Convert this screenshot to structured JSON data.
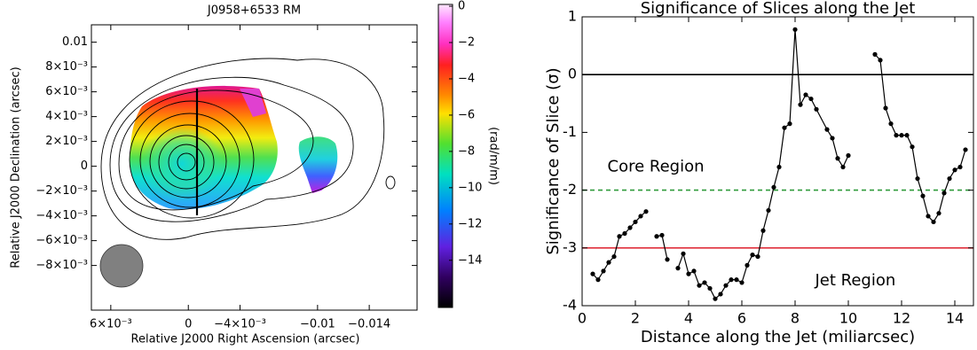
{
  "chart_data": [
    {
      "type": "image",
      "title": "J0958+6533 RM",
      "xlabel": "Relative J2000 Right Ascension (arcsec)",
      "ylabel": "Relative J2000 Declination (arcsec)",
      "xlim": [
        0.0075,
        -0.0177
      ],
      "xticks": [
        {
          "value": 0.006,
          "label": "6×10⁻³"
        },
        0,
        {
          "value": -0.004,
          "label": "−4×10⁻³"
        },
        {
          "value": -0.01,
          "label": "−0.01"
        },
        {
          "value": -0.014,
          "label": "−0.014"
        }
      ],
      "ylim": [
        -0.0116,
        0.0114
      ],
      "yticks": [
        0.01,
        {
          "value": 0.008,
          "label": "8×10⁻³"
        },
        {
          "value": 0.006,
          "label": "6×10⁻³"
        },
        {
          "value": 0.004,
          "label": "4×10⁻³"
        },
        {
          "value": 0.002,
          "label": "2×10⁻³"
        },
        0,
        {
          "value": -0.002,
          "label": "−2×10⁻³"
        },
        {
          "value": -0.004,
          "label": "−4×10⁻³"
        },
        {
          "value": -0.006,
          "label": "−6×10⁻³"
        },
        {
          "value": -0.008,
          "label": "−8×10⁻³"
        }
      ],
      "colorbar": {
        "label": "(rad/m/m)",
        "lim": [
          -16.6,
          0.1
        ],
        "ticks": [
          0,
          {
            "value": -2,
            "label": "−2"
          },
          {
            "value": -4,
            "label": "−4"
          },
          {
            "value": -6,
            "label": "−6"
          },
          {
            "value": -8,
            "label": "−8"
          },
          {
            "value": -10,
            "label": "−10"
          },
          {
            "value": -12,
            "label": "−12"
          },
          {
            "value": -14,
            "label": "−14"
          }
        ]
      }
    },
    {
      "type": "line",
      "title": "Significance of Slices along the Jet",
      "xlabel": "Distance along the Jet (miliarcsec)",
      "ylabel": "Significance of Slice (σ)",
      "xlim": [
        0,
        14.7
      ],
      "xticks": [
        0,
        2,
        4,
        6,
        8,
        10,
        12,
        14
      ],
      "ylim": [
        -4,
        1
      ],
      "yticks": [
        -4,
        -3,
        -2,
        -1,
        0,
        1
      ],
      "x": [
        0.4,
        0.6,
        0.8,
        1.0,
        1.2,
        1.4,
        1.6,
        1.8,
        2.0,
        2.2,
        2.4,
        2.6,
        2.8,
        3.0,
        3.2,
        3.4,
        3.6,
        3.8,
        4.0,
        4.2,
        4.4,
        4.6,
        4.8,
        5.0,
        5.2,
        5.4,
        5.6,
        5.8,
        6.0,
        6.2,
        6.4,
        6.6,
        6.8,
        7.0,
        7.2,
        7.4,
        7.6,
        7.8,
        8.0,
        8.2,
        8.4,
        8.6,
        8.8,
        9.2,
        9.4,
        9.6,
        9.8,
        10.0,
        10.5,
        11.0,
        11.2,
        11.4,
        11.6,
        11.8,
        12.0,
        12.2,
        12.4,
        12.6,
        12.8,
        13.0,
        13.2,
        13.4,
        13.6,
        13.8,
        14.0,
        14.2,
        14.4
      ],
      "series": [
        {
          "color": "#000000",
          "values": [
            -3.45,
            -3.55,
            -3.4,
            -3.25,
            -3.15,
            -2.8,
            -2.75,
            -2.65,
            -2.55,
            -2.45,
            -2.37,
            null,
            -2.8,
            -2.78,
            -3.2,
            null,
            -3.35,
            -3.1,
            -3.45,
            -3.4,
            -3.65,
            -3.6,
            -3.7,
            -3.88,
            -3.8,
            -3.65,
            -3.55,
            -3.55,
            -3.6,
            -3.3,
            -3.12,
            -3.15,
            -2.7,
            -2.35,
            -1.95,
            -1.6,
            -0.92,
            -0.85,
            0.78,
            -0.52,
            -0.35,
            -0.42,
            -0.6,
            -0.95,
            -1.1,
            -1.45,
            -1.6,
            -1.4,
            null,
            0.35,
            0.25,
            -0.58,
            -0.85,
            -1.05,
            -1.05,
            -1.05,
            -1.25,
            -1.8,
            -2.1,
            -2.45,
            -2.55,
            -2.4,
            -2.05,
            -1.8,
            -1.65,
            -1.6,
            -1.3
          ]
        }
      ],
      "hlines": [
        {
          "value": 0,
          "color": "#000000"
        },
        {
          "value": -2,
          "color": "#2e9a3a",
          "style": "dashed"
        },
        {
          "value": -3,
          "color": "#e0303c"
        }
      ],
      "annotations": [
        {
          "text": "Core Region",
          "x": 0.95,
          "y": -1.6,
          "color": "#5a3ef0"
        },
        {
          "text": "Jet Region",
          "x": 8.75,
          "y": -3.57,
          "color": "#5a3ef0"
        }
      ]
    }
  ]
}
